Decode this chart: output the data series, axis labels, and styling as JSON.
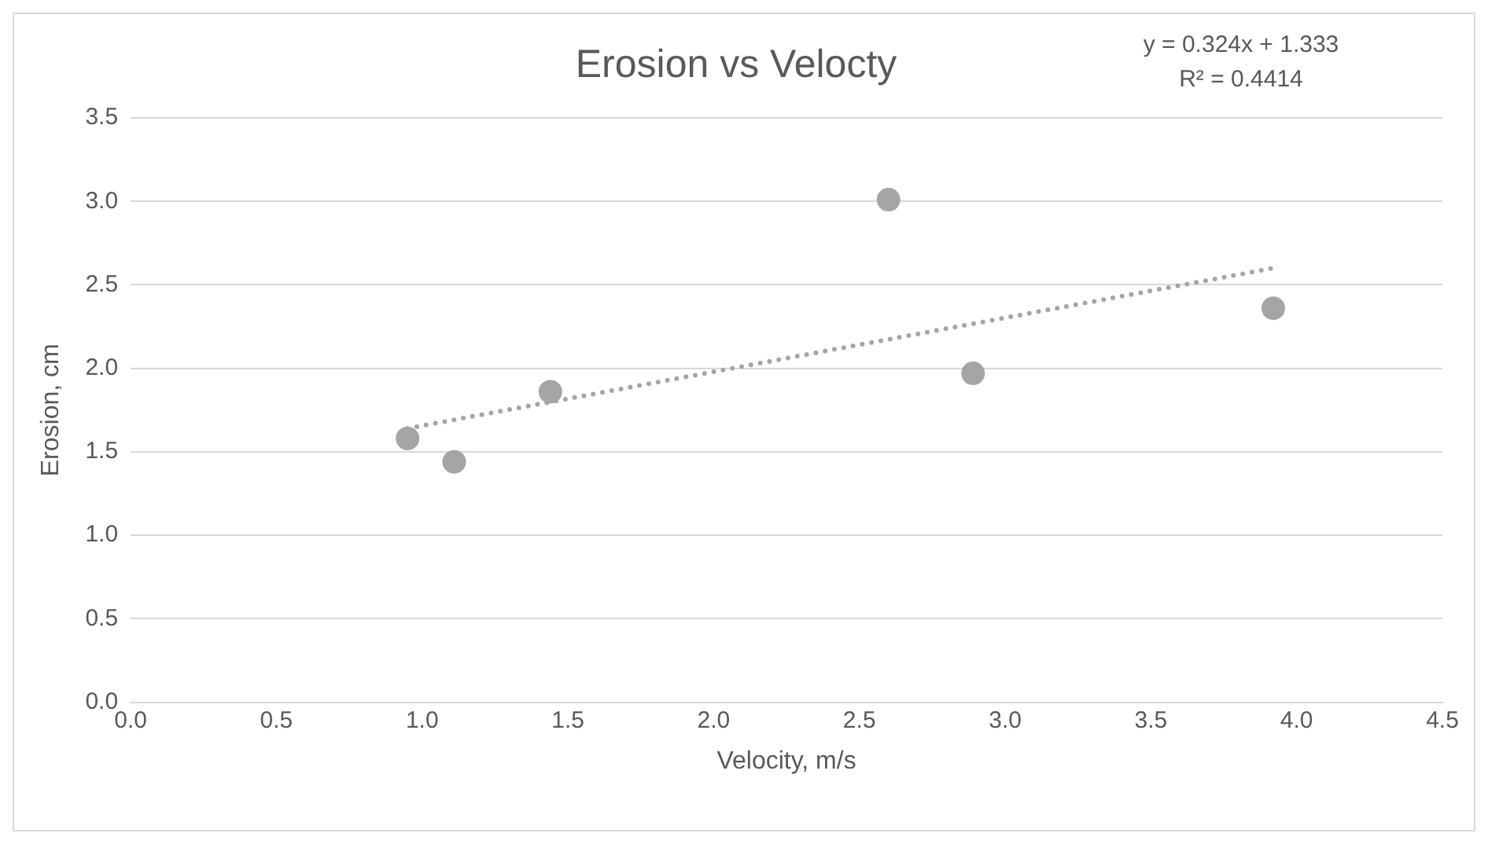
{
  "chart_data": {
    "type": "scatter",
    "title": "Erosion vs Velocty",
    "xlabel": "Velocity, m/s",
    "ylabel": "Erosion, cm",
    "annotations": [
      "y = 0.324x + 1.333",
      "R² = 0.4414"
    ],
    "series": [
      {
        "color": "#a5a5a5",
        "marker": "circle",
        "x": [
          0.95,
          1.11,
          1.44,
          2.6,
          2.89,
          3.92
        ],
        "values": [
          1.58,
          1.44,
          1.86,
          3.01,
          1.97,
          2.36
        ]
      },
      {
        "type": "line",
        "color": "#a5a5a5",
        "marker": "none",
        "line_style": "dotted",
        "x": [
          0.95,
          3.92
        ],
        "values": [
          1.64,
          2.6
        ]
      }
    ],
    "xlim": [
      0,
      4.5
    ],
    "xticks": [
      {
        "value": 0,
        "label": "0.0"
      },
      0.5,
      {
        "value": 1,
        "label": "1.0"
      },
      1.5,
      {
        "value": 2,
        "label": "2.0"
      },
      2.5,
      {
        "value": 3,
        "label": "3.0"
      },
      3.5,
      {
        "value": 4,
        "label": "4.0"
      },
      4.5
    ],
    "ylim": [
      0,
      3.5
    ],
    "yticks": [
      {
        "value": 0,
        "label": "0.0"
      },
      0.5,
      {
        "value": 1,
        "label": "1.0"
      },
      1.5,
      {
        "value": 2,
        "label": "2.0"
      },
      2.5,
      {
        "value": 3,
        "label": "3.0"
      },
      3.5
    ],
    "grid": "y"
  }
}
